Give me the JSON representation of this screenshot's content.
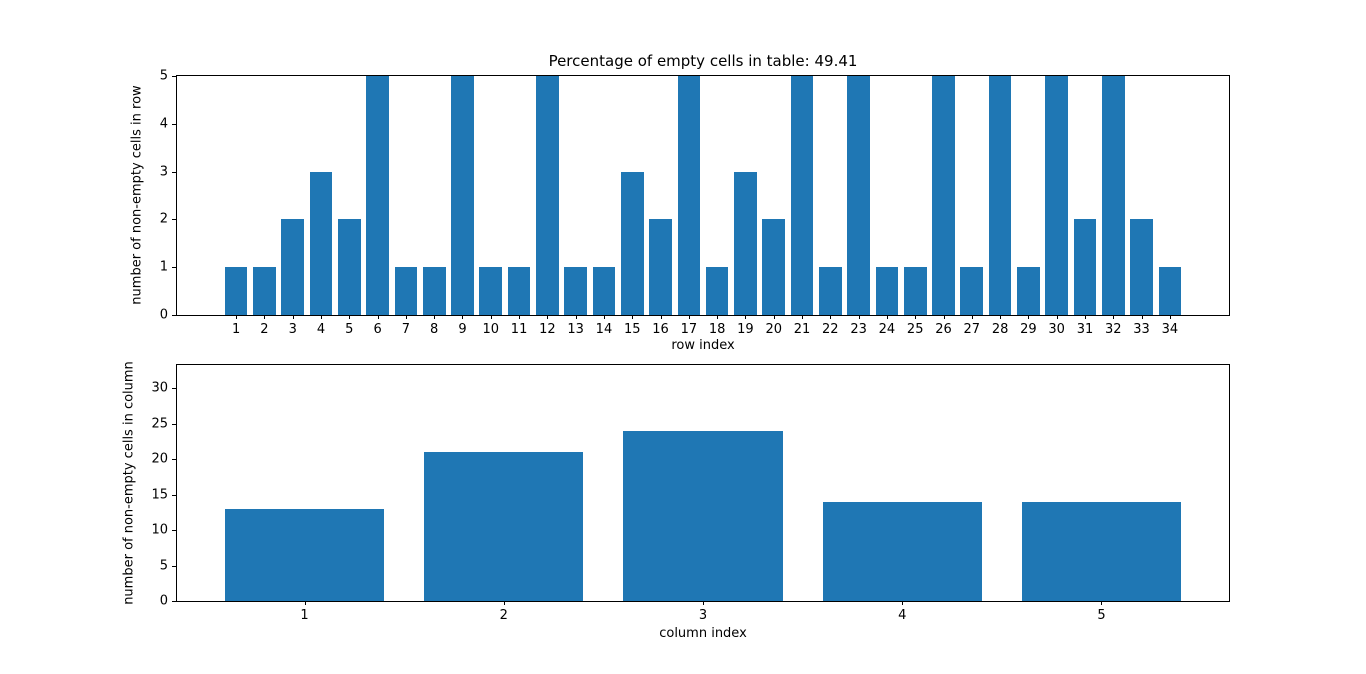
{
  "figure": {
    "background": "#ffffff",
    "bar_color": "#1f77b4",
    "axis_color": "#000000"
  },
  "chart_data": [
    {
      "type": "bar",
      "title": "Percentage of empty cells in table: 49.41",
      "xlabel": "row index",
      "ylabel": "number of non-empty cells in row",
      "categories": [
        "1",
        "2",
        "3",
        "4",
        "5",
        "6",
        "7",
        "8",
        "9",
        "10",
        "11",
        "12",
        "13",
        "14",
        "15",
        "16",
        "17",
        "18",
        "19",
        "20",
        "21",
        "22",
        "23",
        "24",
        "25",
        "26",
        "27",
        "28",
        "29",
        "30",
        "31",
        "32",
        "33",
        "34"
      ],
      "values": [
        1,
        1,
        2,
        3,
        2,
        5,
        1,
        1,
        5,
        1,
        1,
        5,
        1,
        1,
        3,
        2,
        5,
        1,
        3,
        2,
        5,
        1,
        5,
        1,
        1,
        5,
        1,
        5,
        1,
        5,
        2,
        5,
        2,
        1
      ],
      "ylim": [
        0,
        5
      ],
      "yticks": [
        0,
        1,
        2,
        3,
        4,
        5
      ],
      "grid": false,
      "legend": null
    },
    {
      "type": "bar",
      "title": "",
      "xlabel": "column index",
      "ylabel": "number of non-empty cells in column",
      "categories": [
        "1",
        "2",
        "3",
        "4",
        "5"
      ],
      "values": [
        13,
        21,
        24,
        14,
        14
      ],
      "ylim": [
        0,
        33.3
      ],
      "yticks": [
        0,
        5,
        10,
        15,
        20,
        25,
        30
      ],
      "grid": false,
      "legend": null
    }
  ]
}
